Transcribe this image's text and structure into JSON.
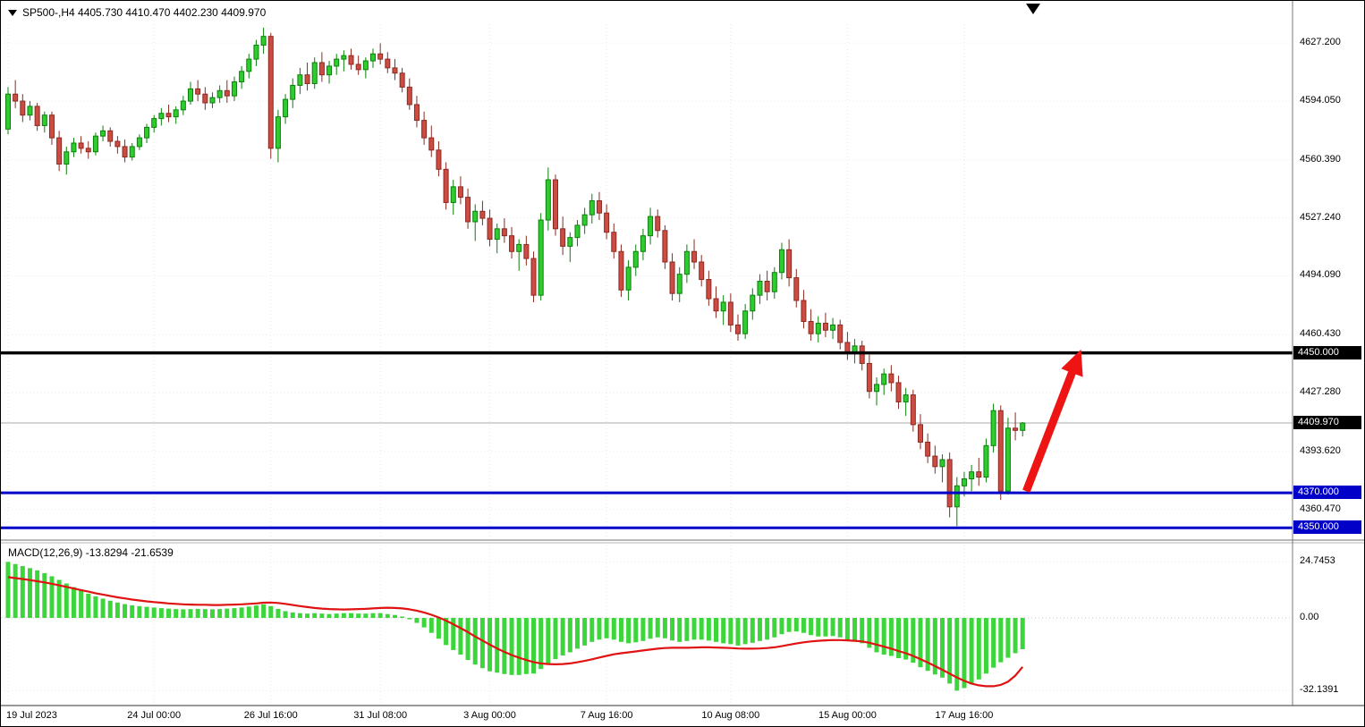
{
  "header": {
    "symbol": "SP500-",
    "period": "H4",
    "open": "4405.730",
    "high": "4410.470",
    "low": "4402.230",
    "close": "4409.970",
    "full_text": "SP500-,H4 4405.730 4410.470 4402.230 4409.970"
  },
  "colors": {
    "up_body": "#2fcc2f",
    "up_edge": "#0b800b",
    "down_body": "#cc4b42",
    "down_edge": "#8b2a22",
    "hist": "#3cd63c",
    "signal": "#e01212",
    "grid": "#e8e8e8",
    "zero_line": "#c4c4c4",
    "bid_line": "#a9a9a9",
    "black_line": "#000000",
    "blue_line": "#0000c8",
    "arrow": "#ee1414"
  },
  "chart_data": {
    "type": "candlestick",
    "title": "SP500-,H4",
    "timeframe": "H4",
    "legend_ohlc": {
      "open": "4405.730",
      "high": "4410.470",
      "low": "4402.230",
      "close": "4409.970"
    },
    "price_axis": {
      "ticks": [
        "4627.200",
        "4594.050",
        "4560.390",
        "4527.240",
        "4494.090",
        "4460.430",
        "4427.280",
        "4393.620",
        "4360.470"
      ],
      "values": [
        4627.2,
        4594.05,
        4560.39,
        4527.24,
        4494.09,
        4460.43,
        4427.28,
        4393.62,
        4360.47
      ],
      "ylim": [
        4344,
        4638
      ]
    },
    "time_axis": [
      {
        "label": "19 Jul 2023",
        "index": 0
      },
      {
        "label": "24 Jul 00:00",
        "index": 20
      },
      {
        "label": "26 Jul 16:00",
        "index": 36
      },
      {
        "label": "31 Jul 08:00",
        "index": 51
      },
      {
        "label": "3 Aug 00:00",
        "index": 66
      },
      {
        "label": "7 Aug 16:00",
        "index": 82
      },
      {
        "label": "10 Aug 08:00",
        "index": 99
      },
      {
        "label": "15 Aug 00:00",
        "index": 115
      },
      {
        "label": "17 Aug 16:00",
        "index": 131
      }
    ],
    "price_lines": [
      {
        "value": 4450.0,
        "label": "4450.000",
        "color": "#000000",
        "thickness": 3.5
      },
      {
        "value": 4370.0,
        "label": "4370.000",
        "color": "#0000c8",
        "thickness": 3
      },
      {
        "value": 4350.0,
        "label": "4350.000",
        "color": "#0000c8",
        "thickness": 3
      }
    ],
    "current_price": {
      "value": 4409.97,
      "label": "4409.970"
    },
    "trend_arrow": {
      "color": "#ee1414",
      "start": {
        "index": 139.5,
        "price": 4371
      },
      "end": {
        "index": 147,
        "price": 4452
      }
    },
    "candles": [
      [
        4578,
        4602,
        4575,
        4598
      ],
      [
        4598,
        4606,
        4590,
        4594
      ],
      [
        4594,
        4598,
        4582,
        4586
      ],
      [
        4586,
        4594,
        4583,
        4591
      ],
      [
        4591,
        4593,
        4577,
        4580
      ],
      [
        4580,
        4588,
        4576,
        4586
      ],
      [
        4586,
        4588,
        4569,
        4573
      ],
      [
        4573,
        4577,
        4554,
        4558
      ],
      [
        4558,
        4568,
        4552,
        4565
      ],
      [
        4565,
        4573,
        4562,
        4570
      ],
      [
        4570,
        4574,
        4564,
        4567
      ],
      [
        4567,
        4571,
        4561,
        4565
      ],
      [
        4565,
        4576,
        4563,
        4574
      ],
      [
        4574,
        4580,
        4571,
        4577
      ],
      [
        4577,
        4579,
        4568,
        4571
      ],
      [
        4571,
        4574,
        4564,
        4568
      ],
      [
        4568,
        4572,
        4559,
        4562
      ],
      [
        4562,
        4570,
        4560,
        4568
      ],
      [
        4568,
        4575,
        4566,
        4573
      ],
      [
        4573,
        4581,
        4570,
        4579
      ],
      [
        4579,
        4586,
        4576,
        4584
      ],
      [
        4584,
        4590,
        4580,
        4587
      ],
      [
        4587,
        4592,
        4582,
        4585
      ],
      [
        4585,
        4591,
        4581,
        4589
      ],
      [
        4589,
        4597,
        4586,
        4594
      ],
      [
        4594,
        4605,
        4592,
        4601
      ],
      [
        4601,
        4606,
        4594,
        4598
      ],
      [
        4598,
        4602,
        4589,
        4593
      ],
      [
        4593,
        4599,
        4590,
        4596
      ],
      [
        4596,
        4603,
        4593,
        4600
      ],
      [
        4600,
        4606,
        4593,
        4597
      ],
      [
        4597,
        4608,
        4594,
        4605
      ],
      [
        4605,
        4614,
        4601,
        4611
      ],
      [
        4611,
        4621,
        4607,
        4618
      ],
      [
        4618,
        4629,
        4614,
        4626
      ],
      [
        4626,
        4636,
        4621,
        4631
      ],
      [
        4631,
        4633,
        4561,
        4567
      ],
      [
        4567,
        4589,
        4559,
        4585
      ],
      [
        4585,
        4598,
        4581,
        4595
      ],
      [
        4595,
        4607,
        4590,
        4603
      ],
      [
        4603,
        4613,
        4598,
        4609
      ],
      [
        4609,
        4616,
        4600,
        4604
      ],
      [
        4604,
        4619,
        4601,
        4616
      ],
      [
        4616,
        4622,
        4605,
        4609
      ],
      [
        4609,
        4617,
        4604,
        4614
      ],
      [
        4614,
        4621,
        4609,
        4618
      ],
      [
        4618,
        4623,
        4611,
        4620
      ],
      [
        4620,
        4624,
        4612,
        4615
      ],
      [
        4615,
        4620,
        4609,
        4612
      ],
      [
        4612,
        4619,
        4607,
        4617
      ],
      [
        4617,
        4624,
        4613,
        4621
      ],
      [
        4621,
        4627,
        4615,
        4618
      ],
      [
        4618,
        4622,
        4610,
        4613
      ],
      [
        4613,
        4618,
        4606,
        4610
      ],
      [
        4610,
        4613,
        4599,
        4602
      ],
      [
        4602,
        4607,
        4589,
        4592
      ],
      [
        4592,
        4597,
        4579,
        4583
      ],
      [
        4583,
        4588,
        4569,
        4573
      ],
      [
        4573,
        4580,
        4562,
        4566
      ],
      [
        4566,
        4571,
        4551,
        4555
      ],
      [
        4555,
        4559,
        4532,
        4536
      ],
      [
        4536,
        4549,
        4529,
        4545
      ],
      [
        4545,
        4551,
        4535,
        4539
      ],
      [
        4539,
        4544,
        4521,
        4525
      ],
      [
        4525,
        4535,
        4514,
        4531
      ],
      [
        4531,
        4537,
        4523,
        4527
      ],
      [
        4527,
        4532,
        4511,
        4515
      ],
      [
        4515,
        4524,
        4507,
        4521
      ],
      [
        4521,
        4527,
        4513,
        4517
      ],
      [
        4517,
        4522,
        4504,
        4508
      ],
      [
        4508,
        4515,
        4497,
        4512
      ],
      [
        4512,
        4517,
        4500,
        4504
      ],
      [
        4504,
        4508,
        4479,
        4483
      ],
      [
        4483,
        4530,
        4480,
        4526
      ],
      [
        4526,
        4556,
        4520,
        4549
      ],
      [
        4549,
        4552,
        4517,
        4521
      ],
      [
        4521,
        4528,
        4506,
        4511
      ],
      [
        4511,
        4519,
        4502,
        4516
      ],
      [
        4516,
        4526,
        4511,
        4523
      ],
      [
        4523,
        4533,
        4518,
        4529
      ],
      [
        4529,
        4541,
        4524,
        4537
      ],
      [
        4537,
        4542,
        4526,
        4530
      ],
      [
        4530,
        4535,
        4515,
        4519
      ],
      [
        4519,
        4524,
        4504,
        4508
      ],
      [
        4508,
        4512,
        4482,
        4486
      ],
      [
        4486,
        4503,
        4480,
        4499
      ],
      [
        4499,
        4512,
        4494,
        4508
      ],
      [
        4508,
        4521,
        4503,
        4517
      ],
      [
        4517,
        4533,
        4512,
        4528
      ],
      [
        4528,
        4532,
        4516,
        4520
      ],
      [
        4520,
        4523,
        4498,
        4502
      ],
      [
        4502,
        4507,
        4480,
        4484
      ],
      [
        4484,
        4499,
        4479,
        4495
      ],
      [
        4495,
        4512,
        4490,
        4508
      ],
      [
        4508,
        4515,
        4498,
        4502
      ],
      [
        4502,
        4506,
        4488,
        4492
      ],
      [
        4492,
        4497,
        4477,
        4481
      ],
      [
        4481,
        4488,
        4470,
        4474
      ],
      [
        4474,
        4483,
        4466,
        4479
      ],
      [
        4479,
        4484,
        4462,
        4466
      ],
      [
        4466,
        4472,
        4457,
        4461
      ],
      [
        4461,
        4478,
        4458,
        4474
      ],
      [
        4474,
        4487,
        4469,
        4483
      ],
      [
        4483,
        4495,
        4478,
        4491
      ],
      [
        4491,
        4497,
        4480,
        4485
      ],
      [
        4485,
        4499,
        4481,
        4496
      ],
      [
        4496,
        4513,
        4492,
        4509
      ],
      [
        4509,
        4515,
        4488,
        4493
      ],
      [
        4493,
        4498,
        4476,
        4480
      ],
      [
        4480,
        4486,
        4464,
        4468
      ],
      [
        4468,
        4475,
        4457,
        4461
      ],
      [
        4461,
        4471,
        4456,
        4467
      ],
      [
        4467,
        4473,
        4459,
        4463
      ],
      [
        4463,
        4470,
        4458,
        4466
      ],
      [
        4466,
        4469,
        4452,
        4456
      ],
      [
        4456,
        4462,
        4446,
        4450
      ],
      [
        4450,
        4458,
        4444,
        4454
      ],
      [
        4454,
        4457,
        4440,
        4444
      ],
      [
        4444,
        4449,
        4424,
        4428
      ],
      [
        4428,
        4436,
        4420,
        4432
      ],
      [
        4432,
        4441,
        4426,
        4438
      ],
      [
        4438,
        4443,
        4428,
        4433
      ],
      [
        4433,
        4437,
        4418,
        4422
      ],
      [
        4422,
        4430,
        4414,
        4426
      ],
      [
        4426,
        4429,
        4405,
        4409
      ],
      [
        4409,
        4415,
        4395,
        4399
      ],
      [
        4399,
        4404,
        4387,
        4391
      ],
      [
        4391,
        4397,
        4381,
        4385
      ],
      [
        4385,
        4392,
        4376,
        4389
      ],
      [
        4389,
        4393,
        4356,
        4362
      ],
      [
        4362,
        4379,
        4351,
        4374
      ],
      [
        4374,
        4382,
        4368,
        4378
      ],
      [
        4378,
        4386,
        4371,
        4382
      ],
      [
        4382,
        4390,
        4374,
        4379
      ],
      [
        4379,
        4401,
        4376,
        4397
      ],
      [
        4397,
        4421,
        4393,
        4417
      ],
      [
        4417,
        4420,
        4366,
        4371
      ],
      [
        4371,
        4413,
        4369,
        4407
      ],
      [
        4407,
        4416,
        4400,
        4405.73
      ],
      [
        4405.73,
        4410.47,
        4402.23,
        4409.97
      ]
    ],
    "macd": {
      "label_text": "MACD(12,26,9) -13.8294 -21.6539",
      "params": "12,26,9",
      "macd_value": "-13.8294",
      "signal_value": "-21.6539",
      "y_ticks": [
        {
          "label": "24.7453",
          "value": 24.7453
        },
        {
          "label": "0.00",
          "value": 0
        },
        {
          "label": "-32.1391",
          "value": -32.1391
        }
      ],
      "ylim": [
        -37,
        31
      ],
      "histogram": [
        24.75,
        23.8,
        22.9,
        22.0,
        21.0,
        19.8,
        18.4,
        16.8,
        15.2,
        13.6,
        12.1,
        10.7,
        9.5,
        8.5,
        7.6,
        6.8,
        6.1,
        5.6,
        5.2,
        4.9,
        4.6,
        4.3,
        4.1,
        3.9,
        3.8,
        3.9,
        4.0,
        3.9,
        3.8,
        3.9,
        4.1,
        4.3,
        4.6,
        5.0,
        5.5,
        6.0,
        5.2,
        4.0,
        3.0,
        2.4,
        2.1,
        1.9,
        2.1,
        1.9,
        1.7,
        1.9,
        2.1,
        2.1,
        1.9,
        1.9,
        2.1,
        2.1,
        1.7,
        1.3,
        0.6,
        -0.6,
        -2.2,
        -4.2,
        -6.6,
        -9.2,
        -12.0,
        -14.2,
        -16.2,
        -18.6,
        -20.6,
        -22.2,
        -23.6,
        -24.2,
        -24.8,
        -25.2,
        -25.2,
        -24.8,
        -24.6,
        -22.6,
        -20.2,
        -18.2,
        -16.6,
        -15.2,
        -13.6,
        -12.2,
        -10.6,
        -9.6,
        -9.0,
        -9.6,
        -10.6,
        -11.2,
        -10.8,
        -10.2,
        -9.2,
        -8.6,
        -9.0,
        -10.0,
        -10.6,
        -10.2,
        -9.6,
        -9.6,
        -10.0,
        -10.6,
        -11.2,
        -11.6,
        -12.2,
        -11.6,
        -11.0,
        -10.2,
        -9.6,
        -8.6,
        -7.2,
        -6.2,
        -6.0,
        -6.6,
        -7.6,
        -8.2,
        -8.2,
        -8.0,
        -8.6,
        -9.6,
        -10.2,
        -11.2,
        -13.2,
        -15.2,
        -16.2,
        -16.8,
        -17.8,
        -18.4,
        -19.8,
        -21.8,
        -23.4,
        -25.0,
        -26.4,
        -29.0,
        -32.14,
        -31.0,
        -29.4,
        -27.2,
        -24.6,
        -22.0,
        -19.6,
        -17.6,
        -15.6,
        -13.83
      ],
      "signal": [
        18.0,
        17.6,
        17.2,
        16.7,
        16.2,
        15.7,
        15.1,
        14.4,
        13.7,
        13.0,
        12.3,
        11.6,
        10.9,
        10.3,
        9.7,
        9.1,
        8.6,
        8.1,
        7.7,
        7.3,
        7.0,
        6.7,
        6.4,
        6.2,
        6.0,
        5.9,
        5.8,
        5.8,
        5.7,
        5.7,
        5.8,
        5.9,
        6.0,
        6.2,
        6.4,
        6.7,
        6.8,
        6.6,
        6.2,
        5.7,
        5.2,
        4.8,
        4.4,
        4.1,
        3.9,
        3.8,
        3.7,
        3.8,
        3.9,
        4.0,
        4.2,
        4.4,
        4.5,
        4.4,
        4.2,
        3.8,
        3.2,
        2.4,
        1.4,
        0.2,
        -1.2,
        -2.8,
        -4.5,
        -6.3,
        -8.2,
        -10.0,
        -11.8,
        -13.5,
        -15.0,
        -16.4,
        -17.6,
        -18.6,
        -19.5,
        -20.1,
        -20.4,
        -20.5,
        -20.4,
        -20.1,
        -19.6,
        -19.0,
        -18.3,
        -17.5,
        -16.8,
        -16.1,
        -15.6,
        -15.2,
        -14.8,
        -14.4,
        -14.0,
        -13.6,
        -13.3,
        -13.2,
        -13.2,
        -13.2,
        -13.1,
        -13.0,
        -13.0,
        -13.1,
        -13.2,
        -13.3,
        -13.5,
        -13.6,
        -13.6,
        -13.5,
        -13.3,
        -13.0,
        -12.5,
        -11.9,
        -11.3,
        -10.8,
        -10.4,
        -10.1,
        -9.9,
        -9.8,
        -9.8,
        -9.9,
        -10.1,
        -10.4,
        -11.0,
        -11.8,
        -12.7,
        -13.6,
        -14.6,
        -15.6,
        -16.8,
        -18.2,
        -19.7,
        -21.3,
        -22.9,
        -24.6,
        -26.3,
        -27.8,
        -29.0,
        -29.8,
        -30.2,
        -30.2,
        -29.6,
        -28.2,
        -25.5,
        -21.65
      ]
    }
  }
}
